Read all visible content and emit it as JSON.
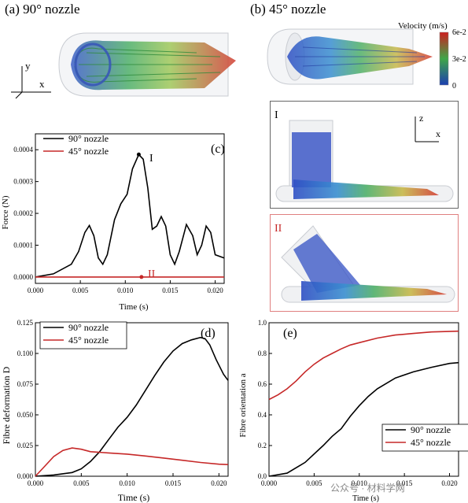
{
  "panel_a": {
    "label": "(a) 90° nozzle",
    "axis_y": "y",
    "axis_x": "x"
  },
  "panel_b": {
    "label": "(b) 45° nozzle",
    "colorbar": {
      "title": "Velocity (m/s)",
      "ticks": [
        "6e-2",
        "3e-2",
        "0"
      ]
    }
  },
  "inset_I": {
    "label": "I",
    "axis_z": "z",
    "axis_x": "x"
  },
  "inset_II": {
    "label": "II"
  },
  "watermark": "公众号 · 材料学网",
  "colors": {
    "black_series": "#000000",
    "red_series": "#c62828",
    "inset_II_frame": "#e08080"
  },
  "chart_data": [
    {
      "id": "c",
      "type": "line",
      "panel_label": "(c)",
      "xlabel": "Time (s)",
      "ylabel": "Force (N)",
      "xlim": [
        0,
        0.021
      ],
      "ylim": [
        -2e-05,
        0.00045
      ],
      "xticks": [
        "0.000",
        "0.005",
        "0.010",
        "0.015",
        "0.020"
      ],
      "yticks": [
        "0.0000",
        "0.0001",
        "0.0002",
        "0.0003",
        "0.0004"
      ],
      "legend": "top-left",
      "annotations": [
        "I",
        "II"
      ],
      "series": [
        {
          "name": "90° nozzle",
          "color": "#000000",
          "points": [
            [
              0,
              0
            ],
            [
              0.002,
              1e-05
            ],
            [
              0.004,
              4e-05
            ],
            [
              0.0048,
              8e-05
            ],
            [
              0.0055,
              0.00014
            ],
            [
              0.006,
              0.000162
            ],
            [
              0.0065,
              0.00013
            ],
            [
              0.007,
              6e-05
            ],
            [
              0.0075,
              4e-05
            ],
            [
              0.008,
              7e-05
            ],
            [
              0.0088,
              0.00018
            ],
            [
              0.0095,
              0.00023
            ],
            [
              0.0102,
              0.00026
            ],
            [
              0.0108,
              0.00034
            ],
            [
              0.0115,
              0.000385
            ],
            [
              0.012,
              0.00037
            ],
            [
              0.0125,
              0.00028
            ],
            [
              0.013,
              0.00015
            ],
            [
              0.0135,
              0.00016
            ],
            [
              0.014,
              0.00019
            ],
            [
              0.0145,
              0.00016
            ],
            [
              0.015,
              7e-05
            ],
            [
              0.0155,
              4e-05
            ],
            [
              0.016,
              8e-05
            ],
            [
              0.0168,
              0.000165
            ],
            [
              0.0175,
              0.00013
            ],
            [
              0.018,
              7e-05
            ],
            [
              0.0185,
              0.0001
            ],
            [
              0.019,
              0.00016
            ],
            [
              0.0195,
              0.00014
            ],
            [
              0.02,
              7e-05
            ],
            [
              0.021,
              6e-05
            ]
          ]
        },
        {
          "name": "45° nozzle",
          "color": "#c62828",
          "points": [
            [
              0,
              0
            ],
            [
              0.005,
              0
            ],
            [
              0.01,
              0
            ],
            [
              0.015,
              0
            ],
            [
              0.021,
              0
            ]
          ]
        }
      ]
    },
    {
      "id": "d",
      "type": "line",
      "panel_label": "(d)",
      "xlabel": "Time (s)",
      "ylabel": "Fibre deformation D",
      "xlim": [
        0,
        0.021
      ],
      "ylim": [
        0,
        0.125
      ],
      "xticks": [
        "0.000",
        "0.005",
        "0.010",
        "0.015",
        "0.020"
      ],
      "yticks": [
        "0.000",
        "0.025",
        "0.050",
        "0.075",
        "0.100",
        "0.125"
      ],
      "legend": "top-left",
      "series": [
        {
          "name": "90° nozzle",
          "color": "#000000",
          "points": [
            [
              0,
              0
            ],
            [
              0.002,
              0.001
            ],
            [
              0.004,
              0.003
            ],
            [
              0.005,
              0.006
            ],
            [
              0.006,
              0.012
            ],
            [
              0.007,
              0.02
            ],
            [
              0.008,
              0.03
            ],
            [
              0.009,
              0.04
            ],
            [
              0.01,
              0.048
            ],
            [
              0.011,
              0.058
            ],
            [
              0.012,
              0.07
            ],
            [
              0.013,
              0.082
            ],
            [
              0.014,
              0.093
            ],
            [
              0.015,
              0.102
            ],
            [
              0.016,
              0.108
            ],
            [
              0.017,
              0.111
            ],
            [
              0.018,
              0.113
            ],
            [
              0.0185,
              0.112
            ],
            [
              0.019,
              0.107
            ],
            [
              0.0197,
              0.095
            ],
            [
              0.0205,
              0.083
            ],
            [
              0.021,
              0.078
            ]
          ]
        },
        {
          "name": "45° nozzle",
          "color": "#c62828",
          "points": [
            [
              0,
              0
            ],
            [
              0.001,
              0.008
            ],
            [
              0.002,
              0.016
            ],
            [
              0.003,
              0.021
            ],
            [
              0.004,
              0.023
            ],
            [
              0.005,
              0.022
            ],
            [
              0.006,
              0.02
            ],
            [
              0.008,
              0.019
            ],
            [
              0.01,
              0.018
            ],
            [
              0.012,
              0.0165
            ],
            [
              0.014,
              0.0148
            ],
            [
              0.016,
              0.013
            ],
            [
              0.018,
              0.0112
            ],
            [
              0.02,
              0.0098
            ],
            [
              0.021,
              0.0095
            ]
          ]
        }
      ]
    },
    {
      "id": "e",
      "type": "line",
      "panel_label": "(e)",
      "xlabel": "Time (s)",
      "ylabel": "Fibre orientation a",
      "xlim": [
        0,
        0.021
      ],
      "ylim": [
        0,
        1.0
      ],
      "xticks": [
        "0.000",
        "0.005",
        "0.010",
        "0.015",
        "0.020"
      ],
      "yticks": [
        "0.0",
        "0.2",
        "0.4",
        "0.6",
        "0.8",
        "1.0"
      ],
      "legend": "bottom-right",
      "series": [
        {
          "name": "90° nozzle",
          "color": "#000000",
          "points": [
            [
              0,
              0
            ],
            [
              0.002,
              0.02
            ],
            [
              0.004,
              0.09
            ],
            [
              0.006,
              0.2
            ],
            [
              0.007,
              0.26
            ],
            [
              0.008,
              0.31
            ],
            [
              0.009,
              0.39
            ],
            [
              0.01,
              0.46
            ],
            [
              0.011,
              0.52
            ],
            [
              0.012,
              0.57
            ],
            [
              0.014,
              0.64
            ],
            [
              0.016,
              0.68
            ],
            [
              0.018,
              0.71
            ],
            [
              0.02,
              0.735
            ],
            [
              0.021,
              0.74
            ]
          ]
        },
        {
          "name": "45° nozzle",
          "color": "#c62828",
          "points": [
            [
              0,
              0.5
            ],
            [
              0.001,
              0.53
            ],
            [
              0.002,
              0.57
            ],
            [
              0.003,
              0.62
            ],
            [
              0.004,
              0.68
            ],
            [
              0.005,
              0.73
            ],
            [
              0.006,
              0.77
            ],
            [
              0.007,
              0.8
            ],
            [
              0.008,
              0.83
            ],
            [
              0.009,
              0.855
            ],
            [
              0.01,
              0.87
            ],
            [
              0.012,
              0.9
            ],
            [
              0.014,
              0.92
            ],
            [
              0.016,
              0.93
            ],
            [
              0.018,
              0.94
            ],
            [
              0.021,
              0.945
            ]
          ]
        }
      ]
    }
  ]
}
